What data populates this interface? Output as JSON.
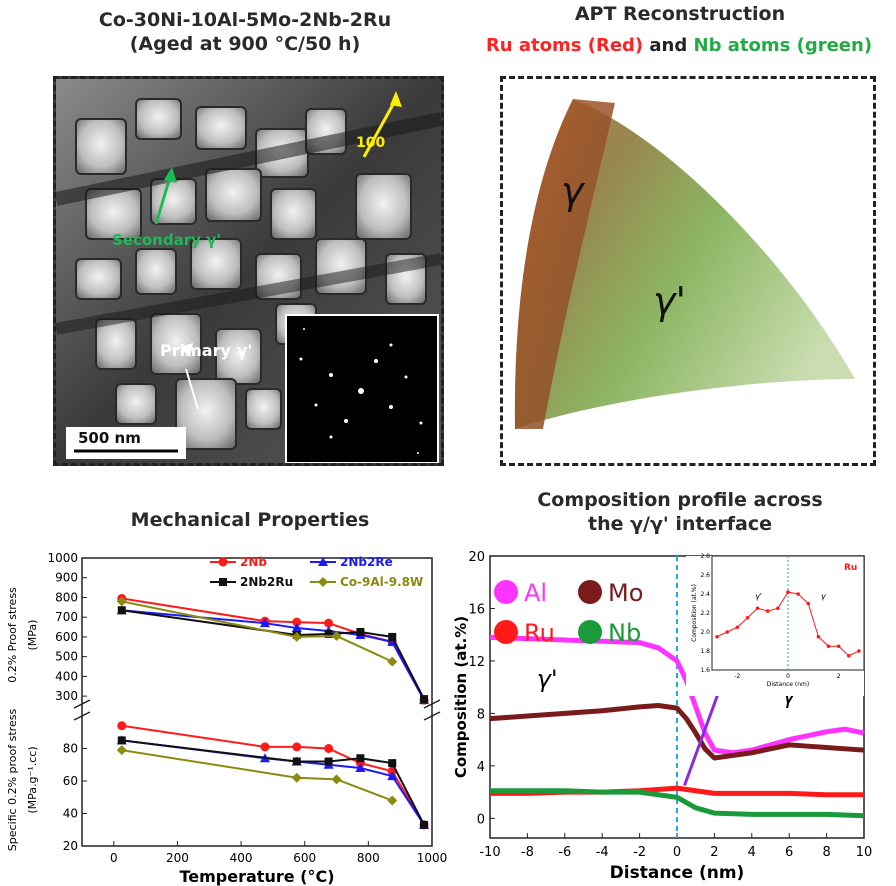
{
  "tem": {
    "title_line1": "Co-30Ni-10Al-5Mo-2Nb-2Ru",
    "title_line2": "(Aged at 900 °C/50 h)",
    "label_100": "100",
    "label_secondary": "Secondary γ'",
    "label_primary": "Primary γ'",
    "scale_bar": "500 nm"
  },
  "apt": {
    "title": "APT Reconstruction",
    "subtitle_ru": "Ru atoms (Red)",
    "subtitle_and": " and ",
    "subtitle_nb": "Nb atoms (green)",
    "label_gamma": "γ",
    "label_gamma_prime": "γ'"
  },
  "mech": {
    "title": "Mechanical Properties",
    "xlabel": "Temperature (°C)",
    "ylabel_top_line1": "0.2% Proof stress",
    "ylabel_top_line2": "(MPa)",
    "ylabel_bottom_line1": "Specific 0.2% proof stress",
    "ylabel_bottom_line2": "(MPa.g⁻¹.cc)",
    "colors": {
      "2Nb": "#ff1a1a",
      "2Nb2Re": "#1a1aff",
      "2Nb2Ru": "#111111",
      "Co-9Al-9.8W": "#8a8a10"
    }
  },
  "comp": {
    "title_line1": "Composition profile across",
    "title_line2": "the γ/γ' interface",
    "xlabel": "Distance (nm)",
    "ylabel": "Composition (at.%)",
    "legend": [
      "Al",
      "Mo",
      "Ru",
      "Nb"
    ],
    "label_gamma_prime": "γ'",
    "label_gamma": "γ",
    "inset_label": "Ru",
    "inset_ylabel": "Composition (at.%)",
    "inset_xlabel": "Distance (nm)",
    "inset_gamma_prime": "γ'",
    "inset_gamma": "γ",
    "colors": {
      "Al": "#ff33ff",
      "Mo": "#7a1a1a",
      "Ru": "#ff1a1a",
      "Nb": "#1a9a3a"
    }
  },
  "chart_data": [
    {
      "type": "line",
      "title": "Mechanical Properties",
      "xlabel": "Temperature (°C)",
      "ylabel": "0.2% Proof stress (MPa)",
      "xlim": [
        -100,
        1000
      ],
      "ylim": [
        250,
        1000
      ],
      "xticks": [
        0,
        200,
        400,
        600,
        800,
        1000
      ],
      "yticks": [
        300,
        400,
        500,
        600,
        700,
        800,
        900,
        1000
      ],
      "series": [
        {
          "name": "2Nb",
          "x": [
            25,
            475,
            575,
            675,
            775,
            875,
            975
          ],
          "y": [
            795,
            680,
            675,
            670,
            615,
            575,
            280
          ]
        },
        {
          "name": "2Nb2Re",
          "x": [
            25,
            475,
            575,
            675,
            775,
            875,
            975
          ],
          "y": [
            735,
            670,
            645,
            630,
            610,
            575,
            280
          ]
        },
        {
          "name": "2Nb2Ru",
          "x": [
            25,
            575,
            675,
            775,
            875,
            975
          ],
          "y": [
            735,
            610,
            615,
            625,
            600,
            285
          ]
        },
        {
          "name": "Co-9Al-9.8W",
          "x": [
            25,
            575,
            700,
            875
          ],
          "y": [
            780,
            600,
            605,
            475
          ]
        }
      ]
    },
    {
      "type": "line",
      "xlabel": "Temperature (°C)",
      "ylabel": "Specific 0.2% proof stress (MPa.g⁻¹.cc)",
      "xlim": [
        -100,
        1000
      ],
      "ylim": [
        20,
        100
      ],
      "xticks": [
        0,
        200,
        400,
        600,
        800,
        1000
      ],
      "yticks": [
        20,
        40,
        60,
        80
      ],
      "series": [
        {
          "name": "2Nb",
          "x": [
            25,
            475,
            575,
            675,
            775,
            875,
            975
          ],
          "y": [
            94,
            81,
            81,
            80,
            71,
            66,
            33
          ]
        },
        {
          "name": "2Nb2Re",
          "x": [
            25,
            475,
            575,
            675,
            775,
            875,
            975
          ],
          "y": [
            85,
            74,
            72,
            70,
            68,
            63,
            33
          ]
        },
        {
          "name": "2Nb2Ru",
          "x": [
            25,
            575,
            675,
            775,
            875,
            975
          ],
          "y": [
            85,
            72,
            72,
            74,
            71,
            33
          ]
        },
        {
          "name": "Co-9Al-9.8W",
          "x": [
            25,
            575,
            700,
            875
          ],
          "y": [
            79,
            62,
            61,
            48
          ]
        }
      ]
    },
    {
      "type": "line",
      "title": "Composition profile across the γ/γ' interface",
      "xlabel": "Distance (nm)",
      "ylabel": "Composition (at.%)",
      "xlim": [
        -10,
        10
      ],
      "ylim": [
        -1.5,
        20
      ],
      "xticks": [
        -10,
        -8,
        -6,
        -4,
        -2,
        0,
        2,
        4,
        6,
        8,
        10
      ],
      "yticks": [
        0,
        4,
        8,
        12,
        16,
        20
      ],
      "series": [
        {
          "name": "Al",
          "x": [
            -10,
            -8,
            -6,
            -4,
            -2,
            -1,
            0,
            0.5,
            1,
            1.5,
            2,
            3,
            4,
            5,
            6,
            7,
            8,
            9,
            10
          ],
          "y": [
            13.8,
            13.7,
            13.6,
            13.5,
            13.4,
            13.0,
            12.0,
            10.5,
            8.5,
            6.5,
            5.2,
            5.0,
            5.2,
            5.6,
            6.0,
            6.3,
            6.6,
            6.8,
            6.5
          ]
        },
        {
          "name": "Mo",
          "x": [
            -10,
            -8,
            -6,
            -4,
            -2,
            -1,
            0,
            0.5,
            1,
            1.5,
            2,
            3,
            4,
            5,
            6,
            7,
            8,
            9,
            10
          ],
          "y": [
            7.6,
            7.8,
            8.0,
            8.2,
            8.5,
            8.6,
            8.4,
            7.6,
            6.5,
            5.3,
            4.6,
            4.8,
            5.0,
            5.3,
            5.6,
            5.5,
            5.4,
            5.3,
            5.2
          ]
        },
        {
          "name": "Ru",
          "x": [
            -10,
            -8,
            -6,
            -4,
            -2,
            0,
            1,
            2,
            4,
            6,
            8,
            10
          ],
          "y": [
            1.9,
            1.9,
            2.0,
            2.0,
            2.1,
            2.3,
            2.1,
            1.9,
            1.9,
            1.9,
            1.8,
            1.8
          ]
        },
        {
          "name": "Nb",
          "x": [
            -10,
            -8,
            -6,
            -4,
            -2,
            0,
            1,
            2,
            4,
            6,
            8,
            10
          ],
          "y": [
            2.1,
            2.1,
            2.1,
            2.0,
            2.0,
            1.6,
            0.8,
            0.4,
            0.3,
            0.3,
            0.3,
            0.2
          ]
        }
      ],
      "annotations": [
        "γ'",
        "γ"
      ]
    },
    {
      "type": "line",
      "title": "Ru",
      "xlabel": "Distance (nm)",
      "ylabel": "Composition (at.%)",
      "xlim": [
        -3,
        3
      ],
      "ylim": [
        1.6,
        2.8
      ],
      "xticks": [
        -2,
        0,
        2
      ],
      "yticks": [
        1.6,
        1.8,
        2.0,
        2.2,
        2.4,
        2.6,
        2.8
      ],
      "series": [
        {
          "name": "Ru",
          "x": [
            -2.8,
            -2.4,
            -2.0,
            -1.6,
            -1.2,
            -0.8,
            -0.4,
            0,
            0.4,
            0.8,
            1.2,
            1.6,
            2.0,
            2.4,
            2.8
          ],
          "y": [
            1.95,
            2.0,
            2.05,
            2.15,
            2.25,
            2.22,
            2.25,
            2.42,
            2.4,
            2.3,
            1.95,
            1.85,
            1.85,
            1.75,
            1.8
          ]
        }
      ]
    }
  ]
}
